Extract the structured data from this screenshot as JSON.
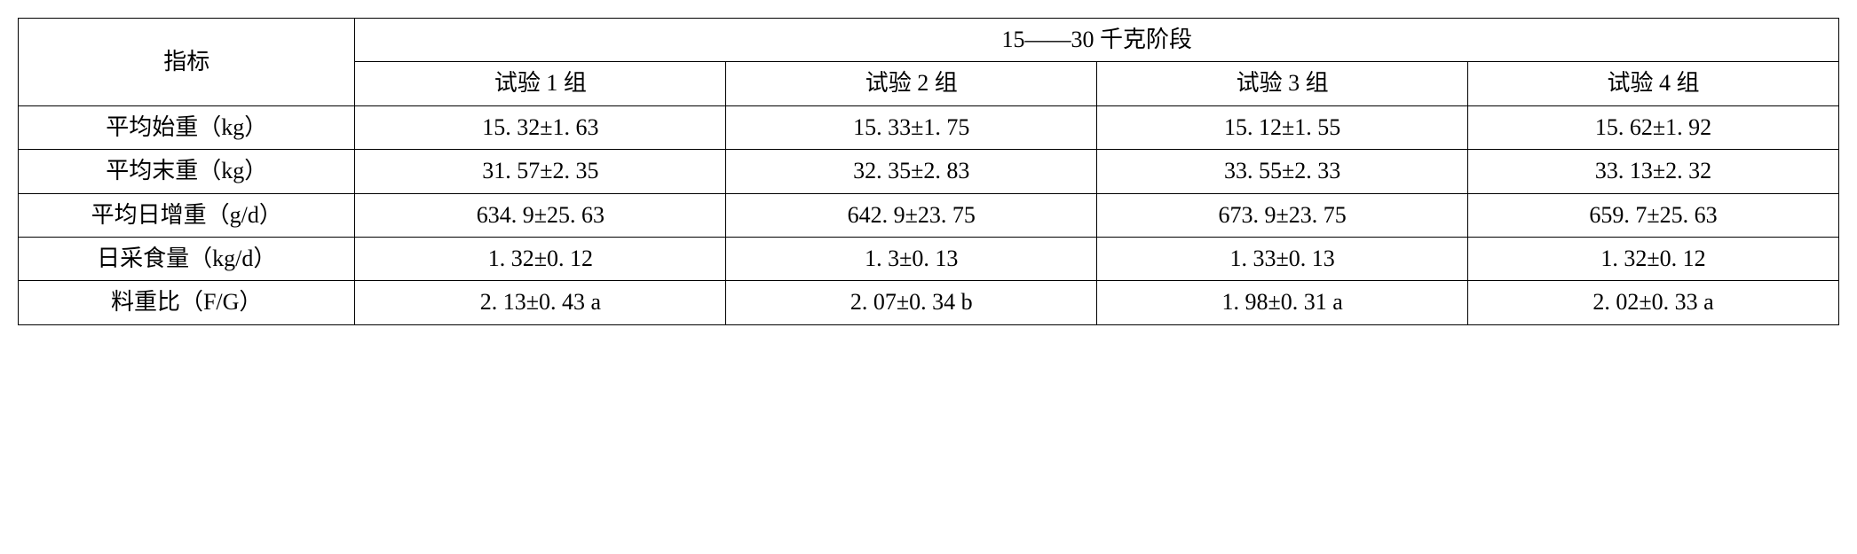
{
  "table": {
    "type": "table",
    "background_color": "#ffffff",
    "border_color": "#000000",
    "text_color": "#000000",
    "font_family": "SimSun",
    "font_size_pt": 20,
    "column_widths_percent": [
      18.5,
      20.375,
      20.375,
      20.375,
      20.375
    ],
    "header": {
      "indicator_label": "指标",
      "stage_label": "15——30 千克阶段",
      "group_labels": [
        "试验 1 组",
        "试验 2 组",
        "试验 3 组",
        "试验 4 组"
      ]
    },
    "rows": [
      {
        "label": "平均始重（kg）",
        "values": [
          "15. 32±1. 63",
          "15. 33±1. 75",
          "15. 12±1. 55",
          "15. 62±1. 92"
        ]
      },
      {
        "label": "平均末重（kg）",
        "values": [
          "31. 57±2. 35",
          "32. 35±2. 83",
          "33. 55±2. 33",
          "33. 13±2. 32"
        ]
      },
      {
        "label": "平均日增重（g/d）",
        "values": [
          "634. 9±25. 63",
          "642. 9±23. 75",
          "673. 9±23. 75",
          "659. 7±25. 63"
        ]
      },
      {
        "label": "日采食量（kg/d）",
        "values": [
          "1. 32±0. 12",
          "1. 3±0. 13",
          "1. 33±0. 13",
          "1. 32±0. 12"
        ]
      },
      {
        "label": "料重比（F/G）",
        "values": [
          "2. 13±0. 43 a",
          "2. 07±0. 34 b",
          "1. 98±0. 31 a",
          "2. 02±0. 33 a"
        ]
      }
    ]
  }
}
